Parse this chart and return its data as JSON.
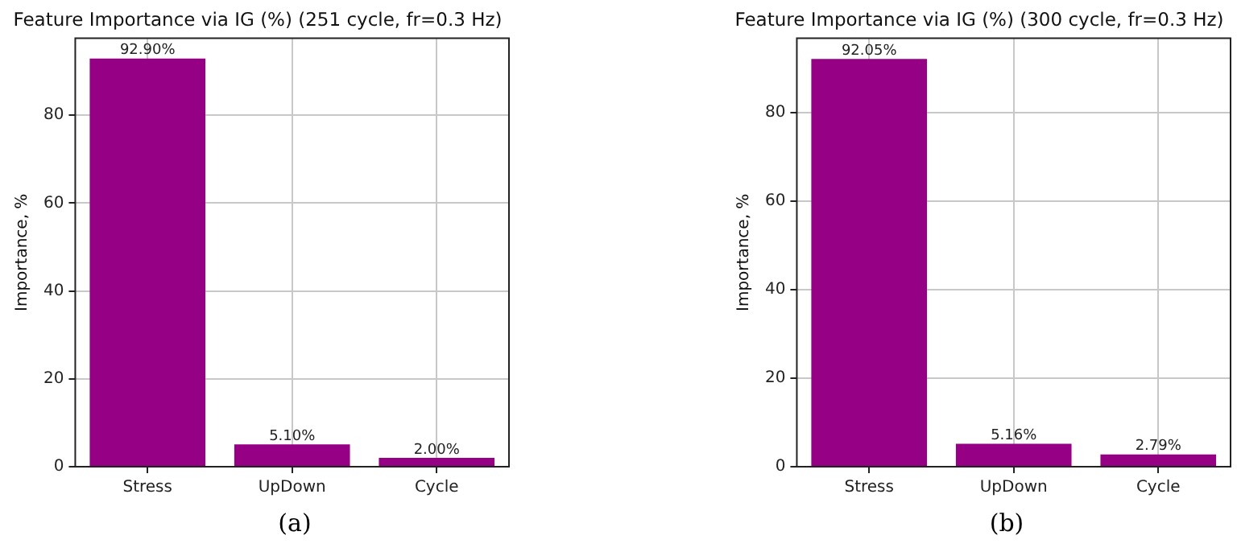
{
  "chart_data": [
    {
      "type": "bar",
      "title": "Feature Importance via IG (%) (251 cycle, fr=0.3 Hz)",
      "ylabel": "Importance, %",
      "categories": [
        "Stress",
        "UpDown",
        "Cycle"
      ],
      "values": [
        92.9,
        5.1,
        2.0
      ],
      "value_labels": [
        "92.90%",
        "5.10%",
        "2.00%"
      ],
      "color": "#960084",
      "ylim": [
        0,
        97.5
      ],
      "yticks": [
        0,
        20,
        40,
        60,
        80
      ],
      "grid": true,
      "legend": false,
      "annotations": [
        "(a)"
      ]
    },
    {
      "type": "bar",
      "title": "Feature Importance via IG (%) (300 cycle, fr=0.3 Hz)",
      "ylabel": "Importance, %",
      "categories": [
        "Stress",
        "UpDown",
        "Cycle"
      ],
      "values": [
        92.05,
        5.16,
        2.79
      ],
      "value_labels": [
        "92.05%",
        "5.16%",
        "2.79%"
      ],
      "color": "#960084",
      "ylim": [
        0,
        96.7
      ],
      "yticks": [
        0,
        20,
        40,
        60,
        80
      ],
      "grid": true,
      "legend": false,
      "annotations": [
        "(b)"
      ]
    }
  ]
}
